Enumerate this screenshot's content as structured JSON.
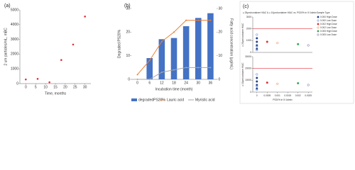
{
  "chart_data": [
    {
      "type": "scatter",
      "panel_label": "(a)",
      "x_label": "Time, months",
      "y_label": "2 um particles/mL, mBC",
      "color": "#e0303a",
      "x": [
        0,
        6,
        12,
        18,
        24,
        30
      ],
      "values": [
        280,
        320,
        90,
        1600,
        2650,
        4550
      ],
      "xlim": [
        -3,
        33
      ],
      "xticks": [
        0,
        5,
        10,
        15,
        20,
        25,
        30
      ],
      "ylim": [
        0,
        5000
      ],
      "yticks": [
        0,
        1000,
        2000,
        3000,
        4000,
        5000
      ]
    },
    {
      "type": "bar",
      "panel_label": "(b)",
      "x_label": "Incubation time (month)",
      "y_label": "Degraded PS20%",
      "y2_label": "Fatty acid concentration (µg/mL)",
      "categories": [
        "0",
        "6",
        "12",
        "18",
        "24",
        "30",
        "36"
      ],
      "series": [
        {
          "name": "degradedPS20%",
          "color": "#4472c4",
          "kind": "bar",
          "values": [
            0,
            9,
            17,
            17.5,
            22.5,
            26,
            28
          ]
        },
        {
          "name": "Lauric acid",
          "color": "#ed7d31",
          "kind": "line",
          "axis": "y2",
          "values": [
            2,
            8,
            16,
            20,
            25,
            25,
            25
          ]
        },
        {
          "name": "Myristic acid",
          "color": "#a5a5a5",
          "kind": "line",
          "axis": "y2",
          "values": [
            0,
            0,
            3,
            4,
            5,
            5,
            5
          ]
        }
      ],
      "ylim": [
        0,
        30
      ],
      "yticks": [
        0,
        10,
        20,
        30
      ],
      "y2lim": [
        0,
        30
      ],
      "y2ticks": [
        0,
        10,
        20,
        30
      ]
    },
    {
      "type": "scatter",
      "panel_label": "(c)",
      "title": "≥ 25µm/container HIAC & ≥ 10µm/container HIAC vs. PS20% in IV Admix",
      "y_label": "≥ 25µm/container HIAC",
      "legend_title": "Sample Type",
      "series": [
        {
          "name": "0.000 High Dose",
          "color": "#1f3c88",
          "x": [
            0,
            0,
            0,
            0
          ],
          "values": [
            300,
            600,
            900,
            1200
          ]
        },
        {
          "name": "0.000 Low Dose",
          "color": "#4472c4",
          "x": [
            0,
            0,
            0
          ],
          "values": [
            200,
            500,
            1500
          ]
        },
        {
          "name": "0.002 High Dose",
          "color": "#e0303a",
          "x": [
            0.0005
          ],
          "values": [
            900
          ]
        },
        {
          "name": "0.002 Low Dose",
          "color": "#ed7d31",
          "x": [
            0.001
          ],
          "values": [
            800
          ]
        },
        {
          "name": "0.005 High Dose",
          "color": "#3aa655",
          "x": [
            0.002
          ],
          "values": [
            700
          ]
        },
        {
          "name": "0.005 Low Dose",
          "color": "#7b4fa0",
          "x": [
            0.0025
          ],
          "values": [
            600
          ]
        }
      ],
      "ref_line": 2000,
      "ref_color": "#e0303a",
      "xlim": [
        -0.0002,
        0.0027
      ],
      "xticks": [
        0,
        0.0005,
        0.001,
        0.0015,
        0.002,
        0.0025
      ],
      "ylim": [
        0,
        3000
      ],
      "yticks": [
        0,
        1000,
        2000,
        3000
      ]
    },
    {
      "type": "scatter",
      "x_label": "PS20% in IV Admix",
      "y_label": "≥ 10µm/container HIAC",
      "series": [
        {
          "color": "#1f3c88",
          "x": [
            0,
            0,
            0,
            0
          ],
          "values": [
            3000,
            6000,
            9000,
            12000
          ]
        },
        {
          "color": "#4472c4",
          "x": [
            0,
            0,
            0
          ],
          "values": [
            2000,
            5000,
            15000
          ]
        },
        {
          "color": "#e0303a",
          "x": [
            0.0005
          ],
          "values": [
            8000
          ]
        },
        {
          "color": "#ed7d31",
          "x": [
            0.001
          ],
          "values": [
            7000
          ]
        },
        {
          "color": "#3aa655",
          "x": [
            0.002
          ],
          "values": [
            7500
          ]
        },
        {
          "color": "#7b4fa0",
          "x": [
            0.0025
          ],
          "values": [
            6000
          ]
        }
      ],
      "ref_line": 20000,
      "ref_color": "#e0303a",
      "xlim": [
        -0.0002,
        0.0027
      ],
      "xticks": [
        0,
        0.0005,
        0.001,
        0.0015,
        0.002,
        0.0025
      ],
      "ylim": [
        0,
        30000
      ],
      "yticks": [
        0,
        10000,
        20000,
        30000
      ]
    }
  ]
}
